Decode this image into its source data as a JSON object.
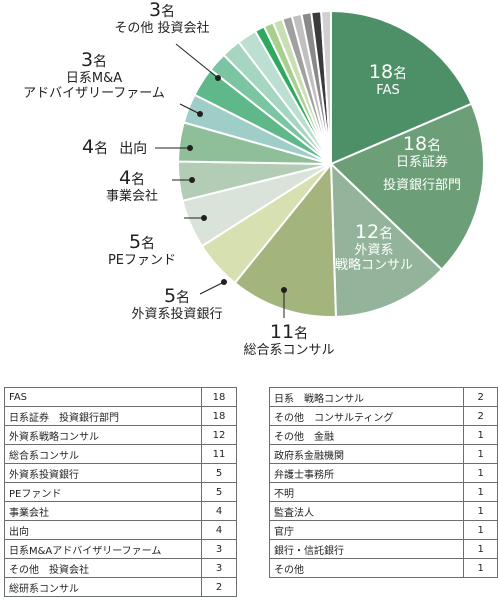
{
  "chart_data": {
    "type": "pie",
    "unit": "名",
    "slices": [
      {
        "label": "FAS",
        "value": 18,
        "color": "#4d8f66"
      },
      {
        "label": "日系証券　投資銀行部門",
        "value": 18,
        "color": "#6c9e78"
      },
      {
        "label": "外資系戦略コンサル",
        "value": 12,
        "color": "#93b39a"
      },
      {
        "label": "総合系コンサル",
        "value": 11,
        "color": "#a3b47d"
      },
      {
        "label": "外資系投資銀行",
        "value": 5,
        "color": "#d6e0b0"
      },
      {
        "label": "PEファンド",
        "value": 5,
        "color": "#d9e3d9"
      },
      {
        "label": "事業会社",
        "value": 4,
        "color": "#b3ccb6"
      },
      {
        "label": "出向",
        "value": 4,
        "color": "#8fbf99"
      },
      {
        "label": "日系M&Aアドバイザリーファーム",
        "value": 3,
        "color": "#9fcdc8"
      },
      {
        "label": "その他　投資会社",
        "value": 3,
        "color": "#5fb88a"
      },
      {
        "label": "総研系コンサル",
        "value": 2,
        "color": "#7cc5a3"
      },
      {
        "label": "日系　戦略コンサル",
        "value": 2,
        "color": "#a6d5c2"
      },
      {
        "label": "その他　コンサルティング",
        "value": 2,
        "color": "#bcdfd2"
      },
      {
        "label": "その他　金融",
        "value": 1,
        "color": "#2eaa5e"
      },
      {
        "label": "政府系金融機関",
        "value": 1,
        "color": "#a8d08d"
      },
      {
        "label": "弁護士事務所",
        "value": 1,
        "color": "#c8dfb4"
      },
      {
        "label": "不明",
        "value": 1,
        "color": "#a0a0a0"
      },
      {
        "label": "監査法人",
        "value": 1,
        "color": "#c0c0c0"
      },
      {
        "label": "官庁",
        "value": 1,
        "color": "#8a8a8a"
      },
      {
        "label": "銀行・信託銀行",
        "value": 1,
        "color": "#3b3b3b"
      },
      {
        "label": "その他",
        "value": 1,
        "color": "#d0d0d0"
      }
    ]
  },
  "labels": {
    "fas": {
      "num": "18",
      "unit": "名",
      "name": "FAS"
    },
    "nikkei_ib": {
      "num": "18",
      "unit": "名",
      "name1": "日系証券",
      "name2": "投資銀行部門"
    },
    "gaishi_senryaku": {
      "num": "12",
      "unit": "名",
      "name1": "外資系",
      "name2": "戦略コンサル"
    },
    "sougou": {
      "num": "11",
      "unit": "名",
      "name": "総合系コンサル"
    },
    "gaishi_ib": {
      "num": "5",
      "unit": "名",
      "name": "外資系投資銀行"
    },
    "pe": {
      "num": "5",
      "unit": "名",
      "name": "PEファンド"
    },
    "jigyou": {
      "num": "4",
      "unit": "名",
      "name": "事業会社"
    },
    "shukkou": {
      "num": "4",
      "unit": "名",
      "name": "出向"
    },
    "nikkei_ma": {
      "num": "3",
      "unit": "名",
      "name1": "日系M&A",
      "name2": "アドバイザリーファーム"
    },
    "sonota_toushi": {
      "num": "3",
      "unit": "名",
      "name": "その他 投資会社"
    }
  },
  "table_left": [
    {
      "name": "FAS",
      "value": "18"
    },
    {
      "name": "日系証券　投資銀行部門",
      "value": "18"
    },
    {
      "name": "外資系戦略コンサル",
      "value": "12"
    },
    {
      "name": "総合系コンサル",
      "value": "11"
    },
    {
      "name": "外資系投資銀行",
      "value": "5"
    },
    {
      "name": "PEファンド",
      "value": "5"
    },
    {
      "name": "事業会社",
      "value": "4"
    },
    {
      "name": "出向",
      "value": "4"
    },
    {
      "name": "日系M&Aアドバイザリーファーム",
      "value": "3"
    },
    {
      "name": "その他　投資会社",
      "value": "3"
    },
    {
      "name": "総研系コンサル",
      "value": "2"
    }
  ],
  "table_right": [
    {
      "name": "日系　戦略コンサル",
      "value": "2"
    },
    {
      "name": "その他　コンサルティング",
      "value": "2"
    },
    {
      "name": "その他　金融",
      "value": "1"
    },
    {
      "name": "政府系金融機関",
      "value": "1"
    },
    {
      "name": "弁護士事務所",
      "value": "1"
    },
    {
      "name": "不明",
      "value": "1"
    },
    {
      "name": "監査法人",
      "value": "1"
    },
    {
      "name": "官庁",
      "value": "1"
    },
    {
      "name": "銀行・信託銀行",
      "value": "1"
    },
    {
      "name": "その他",
      "value": "1"
    }
  ]
}
